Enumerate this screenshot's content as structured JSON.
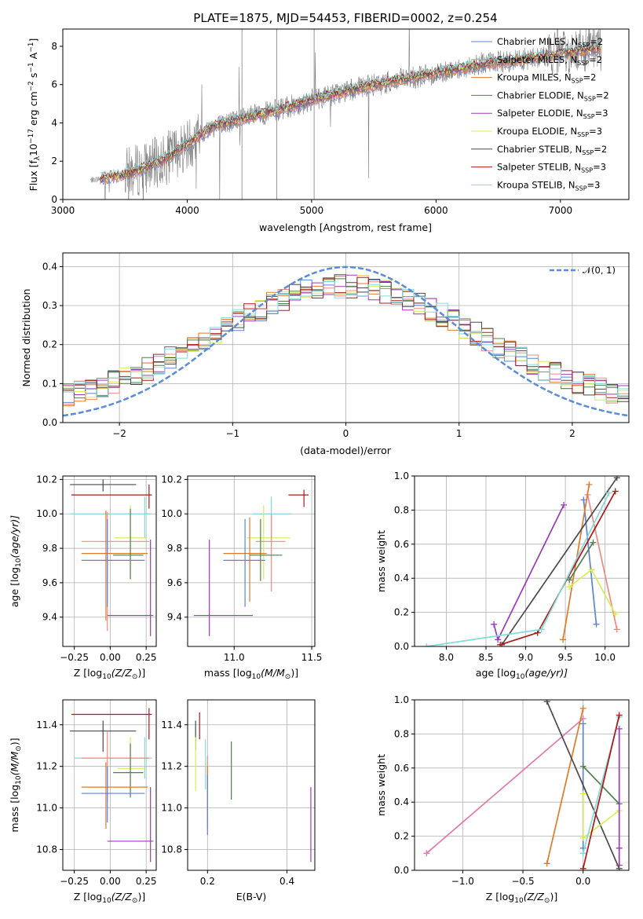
{
  "colors": {
    "chabrier_miles": "#5b84d6",
    "salpeter_miles": "#f08a7e",
    "kroupa_miles": "#e07a2a",
    "chabrier_elodie": "#4f7f4f",
    "salpeter_elodie": "#9b3ab8",
    "kroupa_elodie": "#d9ec5a",
    "chabrier_stelib": "#4a4a4a",
    "salpeter_stelib": "#b01818",
    "kroupa_stelib": "#84dada",
    "normal": "#5b8bd9",
    "spectrum": "#7f7f7f",
    "pink": "#e07ab0"
  },
  "chart_data": [
    {
      "id": "spectrum",
      "type": "line",
      "title": "PLATE=1875, MJD=54453, FIBERID=0002, z=0.254",
      "xlabel": "wavelength [Angstrom, rest frame]",
      "ylabel": "Flux [f",
      "ylabel_sub": "λ",
      "ylabel_rest": "10",
      "ylabel_exp": "−17",
      "ylabel_tail": " erg cm",
      "xlim": [
        3000,
        7550
      ],
      "ylim": [
        0,
        8.9
      ],
      "xticks": [
        "3000",
        "4000",
        "5000",
        "6000",
        "7000"
      ],
      "yticks": [
        "0",
        "2",
        "4",
        "6",
        "8"
      ],
      "spectrum_range": [
        3220,
        7330
      ],
      "legend": [
        {
          "name_a": "Chabrier MILES, N",
          "name_sub": "SSP",
          "name_b": "=2"
        },
        {
          "name_a": "Salpeter MILES, N",
          "name_sub": "SSP",
          "name_b": "=2"
        },
        {
          "name_a": "Kroupa MILES, N",
          "name_sub": "SSP",
          "name_b": "=2"
        },
        {
          "name_a": "Chabrier ELODIE, N",
          "name_sub": "SSP",
          "name_b": "=2"
        },
        {
          "name_a": "Salpeter ELODIE, N",
          "name_sub": "SSP",
          "name_b": "=3"
        },
        {
          "name_a": "Kroupa ELODIE, N",
          "name_sub": "SSP",
          "name_b": "=3"
        },
        {
          "name_a": "Chabrier STELIB, N",
          "name_sub": "SSP",
          "name_b": "=2"
        },
        {
          "name_a": "Salpeter STELIB, N",
          "name_sub": "SSP",
          "name_b": "=3"
        },
        {
          "name_a": "Kroupa STELIB, N",
          "name_sub": "SSP",
          "name_b": "=3"
        }
      ],
      "continuum_x": [
        3220,
        3500,
        3800,
        4000,
        4200,
        4500,
        4800,
        5000,
        5300,
        5600,
        6000,
        6400,
        6800,
        7100,
        7330
      ],
      "continuum_y": [
        1.0,
        1.3,
        2.0,
        2.9,
        3.8,
        4.3,
        4.8,
        5.2,
        5.7,
        6.1,
        6.6,
        7.1,
        7.4,
        7.7,
        7.9
      ]
    },
    {
      "id": "residuals",
      "type": "line",
      "xlabel": "(data-model)/error",
      "ylabel": "Normed distribution",
      "xlim": [
        -2.5,
        2.5
      ],
      "ylim": [
        0,
        0.435
      ],
      "xticks": [
        "−2",
        "−1",
        "0",
        "1",
        "2"
      ],
      "yticks": [
        "0.0",
        "0.1",
        "0.2",
        "0.3",
        "0.4"
      ],
      "legend_label": "𝒩(0, 1)"
    },
    {
      "id": "age_vs_z",
      "type": "scatter",
      "xlabel": "Z [log",
      "xlabel_sub": "10",
      "xlabel_tail": "(Z/Z",
      "xlabel_end": ")]",
      "ylabel": "age  [log",
      "ylabel_sub": "10",
      "ylabel_tail": "(age/yr)]",
      "xlim": [
        -0.33,
        0.32
      ],
      "ylim": [
        9.23,
        10.22
      ],
      "xticks": [
        "−0.25",
        "0.00",
        "0.25"
      ],
      "yticks": [
        "9.4",
        "9.6",
        "9.8",
        "10.0",
        "10.2"
      ],
      "errorbars": [
        {
          "c": "chabrier_stelib",
          "x": -0.05,
          "xlo": -0.28,
          "xhi": 0.18,
          "y": 10.17,
          "ylo": 10.13,
          "yhi": 10.2
        },
        {
          "c": "salpeter_stelib",
          "x": 0.27,
          "xlo": -0.27,
          "xhi": 0.29,
          "y": 10.11,
          "ylo": 10.03,
          "yhi": 10.17
        },
        {
          "c": "kroupa_stelib",
          "x": 0.24,
          "xlo": -0.28,
          "xhi": 0.29,
          "y": 10.0,
          "ylo": 9.86,
          "yhi": 10.1
        },
        {
          "c": "kroupa_elodie",
          "x": 0.14,
          "xlo": 0.03,
          "xhi": 0.25,
          "y": 9.86,
          "ylo": 9.62,
          "yhi": 10.05
        },
        {
          "c": "salpeter_miles",
          "x": -0.02,
          "xlo": -0.2,
          "xhi": 0.27,
          "y": 9.84,
          "ylo": 9.32,
          "yhi": 10.01
        },
        {
          "c": "kroupa_miles",
          "x": -0.03,
          "xlo": -0.2,
          "xhi": 0.26,
          "y": 9.77,
          "ylo": 9.38,
          "yhi": 10.02
        },
        {
          "c": "chabrier_elodie",
          "x": 0.14,
          "xlo": 0.02,
          "xhi": 0.23,
          "y": 9.76,
          "ylo": 9.62,
          "yhi": 10.03
        },
        {
          "c": "chabrier_miles",
          "x": -0.02,
          "xlo": -0.2,
          "xhi": 0.24,
          "y": 9.73,
          "ylo": 9.46,
          "yhi": 9.97
        },
        {
          "c": "salpeter_elodie",
          "x": 0.28,
          "xlo": -0.02,
          "xhi": 0.3,
          "y": 9.41,
          "ylo": 9.29,
          "yhi": 9.85
        }
      ]
    },
    {
      "id": "age_vs_mass",
      "type": "scatter",
      "xlabel": "mass [log",
      "xlabel_sub": "10",
      "xlabel_tail": "(M/M",
      "xlabel_end": ")]",
      "xlim": [
        10.7,
        11.52
      ],
      "ylim": [
        9.23,
        10.22
      ],
      "xticks": [
        "11.0",
        "11.5"
      ],
      "yticks": [
        "9.4",
        "9.6",
        "9.8",
        "10.0",
        "10.2"
      ],
      "errorbars": [
        {
          "c": "salpeter_stelib",
          "x": 11.45,
          "xlo": 11.35,
          "xhi": 11.48,
          "y": 10.11,
          "ylo": 10.04,
          "yhi": 10.14
        },
        {
          "c": "kroupa_stelib",
          "x": 11.24,
          "xlo": 11.12,
          "xhi": 11.37,
          "y": 10.0,
          "ylo": 9.86,
          "yhi": 10.1
        },
        {
          "c": "kroupa_elodie",
          "x": 11.19,
          "xlo": 11.08,
          "xhi": 11.36,
          "y": 9.86,
          "ylo": 9.62,
          "yhi": 10.05
        },
        {
          "c": "salpeter_miles",
          "x": 11.24,
          "xlo": 11.14,
          "xhi": 11.33,
          "y": 9.84,
          "ylo": 9.55,
          "yhi": 10.0
        },
        {
          "c": "kroupa_miles",
          "x": 11.1,
          "xlo": 10.93,
          "xhi": 11.21,
          "y": 9.77,
          "ylo": 9.49,
          "yhi": 9.98
        },
        {
          "c": "chabrier_elodie",
          "x": 11.17,
          "xlo": 11.1,
          "xhi": 11.31,
          "y": 9.76,
          "ylo": 9.61,
          "yhi": 9.97
        },
        {
          "c": "chabrier_miles",
          "x": 11.07,
          "xlo": 10.93,
          "xhi": 11.2,
          "y": 9.73,
          "ylo": 9.46,
          "yhi": 9.97
        },
        {
          "c": "salpeter_elodie",
          "x": 10.84,
          "xlo": 10.74,
          "xhi": 11.12,
          "y": 9.41,
          "ylo": 9.29,
          "yhi": 9.85
        }
      ]
    },
    {
      "id": "weight_vs_age",
      "type": "line",
      "xlabel": "age  [log",
      "xlabel_sub": "10",
      "xlabel_tail": "(age/yr)]",
      "ylabel": "mass weight",
      "xlim": [
        7.6,
        10.3
      ],
      "ylim": [
        0,
        1.0
      ],
      "xticks": [
        "8.0",
        "8.5",
        "9.0",
        "9.5",
        "10.0"
      ],
      "yticks": [
        "0.0",
        "0.2",
        "0.4",
        "0.6",
        "0.8",
        "1.0"
      ],
      "series": [
        {
          "c": "chabrier_miles",
          "x": [
            9.73,
            9.89
          ],
          "y": [
            0.86,
            0.13
          ]
        },
        {
          "c": "salpeter_miles",
          "x": [
            9.78,
            10.15
          ],
          "y": [
            0.89,
            0.1
          ]
        },
        {
          "c": "kroupa_miles",
          "x": [
            9.47,
            9.8
          ],
          "y": [
            0.04,
            0.95
          ]
        },
        {
          "c": "chabrier_elodie",
          "x": [
            9.55,
            9.85
          ],
          "y": [
            0.39,
            0.61
          ]
        },
        {
          "c": "salpeter_elodie",
          "x": [
            8.6,
            8.65,
            9.48
          ],
          "y": [
            0.13,
            0.04,
            0.83
          ]
        },
        {
          "c": "kroupa_elodie",
          "x": [
            9.55,
            9.83,
            10.13
          ],
          "y": [
            0.35,
            0.45,
            0.19
          ]
        },
        {
          "c": "chabrier_stelib",
          "x": [
            8.7,
            10.15
          ],
          "y": [
            0.01,
            0.99
          ]
        },
        {
          "c": "salpeter_stelib",
          "x": [
            8.68,
            9.15,
            10.13
          ],
          "y": [
            0.01,
            0.08,
            0.91
          ]
        },
        {
          "c": "kroupa_stelib",
          "x": [
            7.75,
            9.2,
            10.05
          ],
          "y": [
            0.0,
            0.1,
            0.9
          ]
        }
      ]
    },
    {
      "id": "mass_vs_z",
      "type": "scatter",
      "xlabel": "Z [log",
      "xlabel_sub": "10",
      "xlabel_tail": "(Z/Z",
      "xlabel_end": ")]",
      "ylabel": "mass [log",
      "ylabel_sub": "10",
      "ylabel_tail": "(M/M",
      "ylabel_end": ")]",
      "xlim": [
        -0.33,
        0.32
      ],
      "ylim": [
        10.7,
        11.52
      ],
      "xticks": [
        "−0.25",
        "0.00",
        "0.25"
      ],
      "yticks": [
        "10.8",
        "11.0",
        "11.2",
        "11.4"
      ],
      "errorbars": [
        {
          "c": "salpeter_stelib",
          "x": 0.27,
          "xlo": -0.27,
          "xhi": 0.29,
          "y": 11.45,
          "ylo": 11.33,
          "yhi": 11.48
        },
        {
          "c": "chabrier_stelib",
          "x": -0.05,
          "xlo": -0.28,
          "xhi": 0.18,
          "y": 11.37,
          "ylo": 11.27,
          "yhi": 11.42
        },
        {
          "c": "kroupa_stelib",
          "x": 0.24,
          "xlo": -0.25,
          "xhi": 0.29,
          "y": 11.24,
          "ylo": 11.14,
          "yhi": 11.34
        },
        {
          "c": "salpeter_miles",
          "x": -0.02,
          "xlo": -0.2,
          "xhi": 0.27,
          "y": 11.24,
          "ylo": 11.03,
          "yhi": 11.37
        },
        {
          "c": "kroupa_elodie",
          "x": 0.14,
          "xlo": 0.05,
          "xhi": 0.25,
          "y": 11.19,
          "ylo": 11.08,
          "yhi": 11.34
        },
        {
          "c": "chabrier_elodie",
          "x": 0.14,
          "xlo": 0.02,
          "xhi": 0.23,
          "y": 11.17,
          "ylo": 11.05,
          "yhi": 11.31
        },
        {
          "c": "kroupa_miles",
          "x": -0.03,
          "xlo": -0.2,
          "xhi": 0.26,
          "y": 11.1,
          "ylo": 10.9,
          "yhi": 11.22
        },
        {
          "c": "chabrier_miles",
          "x": -0.02,
          "xlo": -0.2,
          "xhi": 0.24,
          "y": 11.07,
          "ylo": 10.93,
          "yhi": 11.2
        },
        {
          "c": "salpeter_elodie",
          "x": 0.28,
          "xlo": -0.02,
          "xhi": 0.3,
          "y": 10.84,
          "ylo": 10.74,
          "yhi": 11.1
        }
      ]
    },
    {
      "id": "mass_vs_ebv",
      "type": "scatter",
      "xlabel": "E(B-V)",
      "xlim": [
        0.15,
        0.47
      ],
      "ylim": [
        10.7,
        11.52
      ],
      "xticks": [
        "0.2",
        "0.4"
      ],
      "yticks": [
        "10.8",
        "11.0",
        "11.2",
        "11.4"
      ],
      "errorbars": [
        {
          "c": "salpeter_stelib",
          "x": 0.18,
          "xlo": 0.18,
          "xhi": 0.18,
          "y": 11.4,
          "ylo": 11.33,
          "yhi": 11.46
        },
        {
          "c": "chabrier_stelib",
          "x": 0.17,
          "xlo": 0.17,
          "xhi": 0.17,
          "y": 11.35,
          "ylo": 11.28,
          "yhi": 11.42
        },
        {
          "c": "kroupa_elodie",
          "x": 0.17,
          "xlo": 0.17,
          "xhi": 0.17,
          "y": 11.2,
          "ylo": 11.08,
          "yhi": 11.34
        },
        {
          "c": "kroupa_stelib",
          "x": 0.195,
          "xlo": 0.195,
          "xhi": 0.195,
          "y": 11.2,
          "ylo": 11.09,
          "yhi": 11.33
        },
        {
          "c": "salpeter_miles",
          "x": 0.2,
          "xlo": 0.2,
          "xhi": 0.2,
          "y": 11.1,
          "ylo": 10.95,
          "yhi": 11.25
        },
        {
          "c": "kroupa_miles",
          "x": 0.2,
          "xlo": 0.2,
          "xhi": 0.2,
          "y": 11.05,
          "ylo": 10.9,
          "yhi": 11.2
        },
        {
          "c": "chabrier_miles",
          "x": 0.2,
          "xlo": 0.2,
          "xhi": 0.2,
          "y": 11.0,
          "ylo": 10.87,
          "yhi": 11.16
        },
        {
          "c": "chabrier_elodie",
          "x": 0.26,
          "xlo": 0.26,
          "xhi": 0.26,
          "y": 11.18,
          "ylo": 11.04,
          "yhi": 11.32
        },
        {
          "c": "salpeter_elodie",
          "x": 0.46,
          "xlo": 0.46,
          "xhi": 0.46,
          "y": 10.9,
          "ylo": 10.74,
          "yhi": 11.1
        }
      ]
    },
    {
      "id": "weight_vs_z",
      "type": "line",
      "xlabel": "Z [log",
      "xlabel_sub": "10",
      "xlabel_tail": "(Z/Z",
      "xlabel_end": ")]",
      "ylabel": "mass weight",
      "xlim": [
        -1.4,
        0.38
      ],
      "ylim": [
        0,
        1.0
      ],
      "xticks": [
        "−1.0",
        "−0.5",
        "0.0"
      ],
      "yticks": [
        "0.0",
        "0.2",
        "0.4",
        "0.6",
        "0.8",
        "1.0"
      ],
      "series": [
        {
          "c": "pink",
          "x": [
            -1.3,
            0.0
          ],
          "y": [
            0.1,
            0.89
          ]
        },
        {
          "c": "kroupa_miles",
          "x": [
            -0.3,
            0.0
          ],
          "y": [
            0.04,
            0.95
          ]
        },
        {
          "c": "chabrier_miles",
          "x": [
            0.0,
            0.0
          ],
          "y": [
            0.86,
            0.13
          ]
        },
        {
          "c": "chabrier_stelib",
          "x": [
            -0.3,
            0.3
          ],
          "y": [
            0.99,
            0.01
          ]
        },
        {
          "c": "chabrier_elodie",
          "x": [
            0.0,
            0.3
          ],
          "y": [
            0.61,
            0.39
          ]
        },
        {
          "c": "kroupa_elodie",
          "x": [
            0.0,
            0.0,
            0.3
          ],
          "y": [
            0.45,
            0.19,
            0.35
          ]
        },
        {
          "c": "kroupa_stelib",
          "x": [
            0.0,
            0.3
          ],
          "y": [
            0.1,
            0.9
          ]
        },
        {
          "c": "salpeter_stelib",
          "x": [
            0.0,
            0.3
          ],
          "y": [
            0.01,
            0.91
          ]
        },
        {
          "c": "salpeter_elodie",
          "x": [
            0.3,
            0.3,
            0.3
          ],
          "y": [
            0.83,
            0.13,
            0.03
          ]
        }
      ]
    }
  ]
}
